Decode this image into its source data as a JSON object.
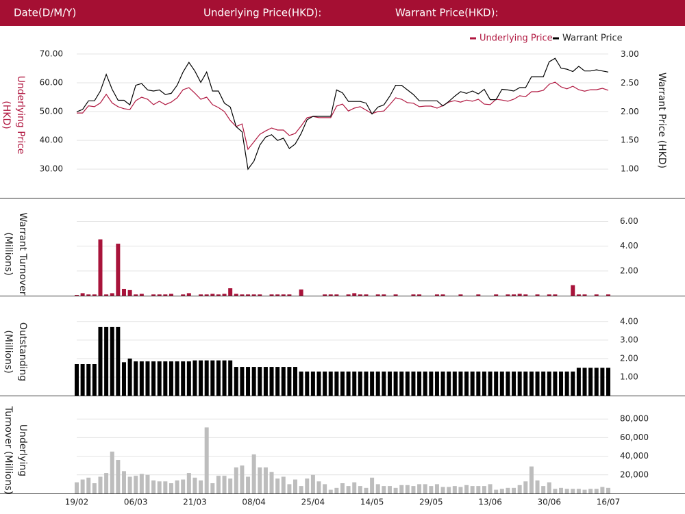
{
  "header": {
    "date": "Date(D/M/Y)",
    "underlying": "Underlying Price(HKD):",
    "warrant": "Warrant Price(HKD):"
  },
  "chart_data": [
    {
      "type": "line",
      "legend": "top-right",
      "grid": true,
      "ylabel": [
        "Underlying Price",
        "(HKD)"
      ],
      "y2label": [
        "Warrant  Price (HKD)"
      ],
      "ylim": [
        21,
        74.5
      ],
      "yticks": [
        {
          "value": 30,
          "label": "30.00"
        },
        {
          "value": 40,
          "label": "40.00"
        },
        {
          "value": 50,
          "label": "50.00"
        },
        {
          "value": 60,
          "label": "60.00"
        },
        {
          "value": 70,
          "label": "70.00"
        }
      ],
      "y2lim": [
        0.55,
        3.23
      ],
      "y2ticks": [
        {
          "value": 1,
          "label": "1.00"
        },
        {
          "value": 1.5,
          "label": "1.50"
        },
        {
          "value": 2,
          "label": "2.00"
        },
        {
          "value": 2.5,
          "label": "2.50"
        },
        {
          "value": 3,
          "label": "3.00"
        }
      ],
      "series": [
        {
          "name": "Underlying Price",
          "color": "#b0163f",
          "values": [
            49.5,
            49.5,
            52,
            51.7,
            53,
            56,
            53,
            51.7,
            51,
            50.7,
            53.8,
            55,
            54.3,
            52.4,
            53.6,
            52.4,
            53.3,
            54.8,
            57.6,
            58.3,
            56.4,
            54.3,
            55,
            52.4,
            51.4,
            50,
            46.9,
            44.8,
            45.7,
            36.9,
            39.5,
            42.1,
            43.3,
            44.3,
            43.6,
            43.6,
            41.7,
            42.4,
            45,
            47.9,
            48.3,
            47.9,
            47.9,
            47.9,
            51.9,
            52.6,
            50.2,
            51.2,
            51.7,
            50.5,
            49.3,
            50,
            50.2,
            52.4,
            54.8,
            54.3,
            53.1,
            52.9,
            51.7,
            51.9,
            51.9,
            51.2,
            52.1,
            53.3,
            53.8,
            53.3,
            54,
            53.6,
            54.3,
            52.6,
            52.4,
            54.3,
            54,
            53.6,
            54.3,
            55.5,
            55.2,
            56.9,
            56.9,
            57.4,
            59.5,
            60.2,
            58.6,
            57.9,
            58.8,
            57.6,
            57.1,
            57.6,
            57.6,
            58.1,
            57.4
          ]
        },
        {
          "name": "Warrant Price",
          "color": "#000000",
          "axis": "y2",
          "values": [
            2.0,
            2.04,
            2.19,
            2.19,
            2.36,
            2.65,
            2.39,
            2.2,
            2.2,
            2.12,
            2.46,
            2.49,
            2.38,
            2.36,
            2.38,
            2.3,
            2.32,
            2.46,
            2.69,
            2.86,
            2.71,
            2.51,
            2.69,
            2.36,
            2.36,
            2.15,
            2.08,
            1.74,
            1.65,
            1.0,
            1.14,
            1.42,
            1.56,
            1.6,
            1.5,
            1.54,
            1.36,
            1.44,
            1.62,
            1.86,
            1.92,
            1.92,
            1.92,
            1.92,
            2.38,
            2.33,
            2.18,
            2.18,
            2.18,
            2.15,
            1.96,
            2.08,
            2.12,
            2.27,
            2.46,
            2.46,
            2.38,
            2.3,
            2.19,
            2.19,
            2.19,
            2.19,
            2.1,
            2.18,
            2.27,
            2.35,
            2.32,
            2.36,
            2.31,
            2.39,
            2.21,
            2.21,
            2.39,
            2.38,
            2.36,
            2.42,
            2.42,
            2.61,
            2.61,
            2.61,
            2.87,
            2.93,
            2.76,
            2.74,
            2.7,
            2.79,
            2.71,
            2.71,
            2.73,
            2.71,
            2.69
          ]
        }
      ]
    },
    {
      "type": "bar",
      "grid": true,
      "color": "#a8133a",
      "ylabel": [
        "Warrant  Turnover",
        "(Millions)"
      ],
      "ylim": [
        0,
        7.3
      ],
      "yticks": [
        {
          "value": 2,
          "label": "2.00"
        },
        {
          "value": 4,
          "label": "4.00"
        },
        {
          "value": 6,
          "label": "6.00"
        }
      ],
      "values": [
        0.05,
        0.2,
        0.1,
        0.1,
        4.55,
        0.1,
        0.2,
        4.2,
        0.55,
        0.45,
        0.1,
        0.15,
        0,
        0.1,
        0.1,
        0.1,
        0.15,
        0,
        0.1,
        0.2,
        0,
        0.1,
        0.1,
        0.15,
        0.1,
        0.15,
        0.6,
        0.15,
        0.1,
        0.1,
        0.1,
        0.1,
        0,
        0.1,
        0.1,
        0.1,
        0.1,
        0,
        0.5,
        0,
        0,
        0,
        0.1,
        0.1,
        0.1,
        0,
        0.1,
        0.2,
        0.1,
        0.1,
        0,
        0.1,
        0.1,
        0,
        0.1,
        0,
        0,
        0.1,
        0.1,
        0,
        0,
        0.1,
        0.1,
        0,
        0,
        0.1,
        0,
        0,
        0.1,
        0,
        0,
        0.1,
        0,
        0.1,
        0.1,
        0.15,
        0.1,
        0,
        0.1,
        0,
        0.1,
        0.1,
        0,
        0,
        0.85,
        0.1,
        0.1,
        0,
        0.1,
        0,
        0.1
      ]
    },
    {
      "type": "bar",
      "grid": true,
      "color": "#000000",
      "ylabel": [
        "Outstanding",
        "(Millions)"
      ],
      "ylim": [
        0,
        5.1
      ],
      "yticks": [
        {
          "value": 1,
          "label": "1.00"
        },
        {
          "value": 2,
          "label": "2.00"
        },
        {
          "value": 3,
          "label": "3.00"
        },
        {
          "value": 4,
          "label": "4.00"
        }
      ],
      "values": [
        1.7,
        1.7,
        1.7,
        1.7,
        3.7,
        3.7,
        3.7,
        3.7,
        1.8,
        2.0,
        1.85,
        1.85,
        1.85,
        1.85,
        1.85,
        1.85,
        1.85,
        1.85,
        1.85,
        1.85,
        1.9,
        1.9,
        1.9,
        1.9,
        1.9,
        1.9,
        1.9,
        1.55,
        1.55,
        1.55,
        1.55,
        1.55,
        1.55,
        1.55,
        1.55,
        1.55,
        1.55,
        1.55,
        1.3,
        1.3,
        1.3,
        1.3,
        1.3,
        1.3,
        1.3,
        1.3,
        1.3,
        1.3,
        1.3,
        1.3,
        1.3,
        1.3,
        1.3,
        1.3,
        1.3,
        1.3,
        1.3,
        1.3,
        1.3,
        1.3,
        1.3,
        1.3,
        1.3,
        1.3,
        1.3,
        1.3,
        1.3,
        1.3,
        1.3,
        1.3,
        1.3,
        1.3,
        1.3,
        1.3,
        1.3,
        1.3,
        1.3,
        1.3,
        1.3,
        1.3,
        1.3,
        1.3,
        1.3,
        1.3,
        1.3,
        1.5,
        1.5,
        1.5,
        1.5,
        1.5,
        1.5
      ]
    },
    {
      "type": "bar",
      "grid": true,
      "color": "#bdbdbd",
      "ylabel": [
        "Underlying",
        "Turnover (Millions)"
      ],
      "ylim": [
        0,
        100000
      ],
      "yticks": [
        {
          "value": 20000,
          "label": "20,000"
        },
        {
          "value": 40000,
          "label": "40,000"
        },
        {
          "value": 60000,
          "label": "60,000"
        },
        {
          "value": 80000,
          "label": "80,000"
        }
      ],
      "categories": [
        "19/02",
        null,
        null,
        null,
        null,
        null,
        null,
        null,
        null,
        null,
        "06/03",
        null,
        null,
        null,
        null,
        null,
        null,
        null,
        null,
        null,
        "21/03",
        null,
        null,
        null,
        null,
        null,
        null,
        null,
        null,
        null,
        "08/04",
        null,
        null,
        null,
        null,
        null,
        null,
        null,
        null,
        null,
        "25/04",
        null,
        null,
        null,
        null,
        null,
        null,
        null,
        null,
        null,
        "14/05",
        null,
        null,
        null,
        null,
        null,
        null,
        null,
        null,
        null,
        "29/05",
        null,
        null,
        null,
        null,
        null,
        null,
        null,
        null,
        null,
        "13/06",
        null,
        null,
        null,
        null,
        null,
        null,
        null,
        null,
        null,
        "30/06",
        null,
        null,
        null,
        null,
        null,
        null,
        null,
        null,
        null,
        "16/07"
      ],
      "values": [
        12000,
        15000,
        17000,
        11000,
        18000,
        22000,
        45000,
        36000,
        24000,
        18000,
        19000,
        21000,
        20000,
        14000,
        13000,
        13000,
        11000,
        14000,
        15000,
        22000,
        17000,
        14000,
        71000,
        11000,
        19000,
        19000,
        16000,
        28000,
        30000,
        18000,
        42000,
        28000,
        28000,
        23000,
        16000,
        18000,
        10000,
        15000,
        8000,
        16000,
        20000,
        13000,
        10000,
        4000,
        6000,
        11000,
        8000,
        12000,
        8000,
        6000,
        17000,
        10000,
        8000,
        8000,
        6000,
        9000,
        9000,
        8000,
        10000,
        10000,
        8000,
        10000,
        7000,
        7000,
        8000,
        7000,
        9000,
        8000,
        8000,
        8000,
        10000,
        4000,
        5000,
        6000,
        6000,
        9000,
        13000,
        29000,
        14000,
        8000,
        12000,
        5000,
        6000,
        5000,
        5000,
        5000,
        4000,
        5000,
        5000,
        7000,
        6000
      ]
    }
  ]
}
